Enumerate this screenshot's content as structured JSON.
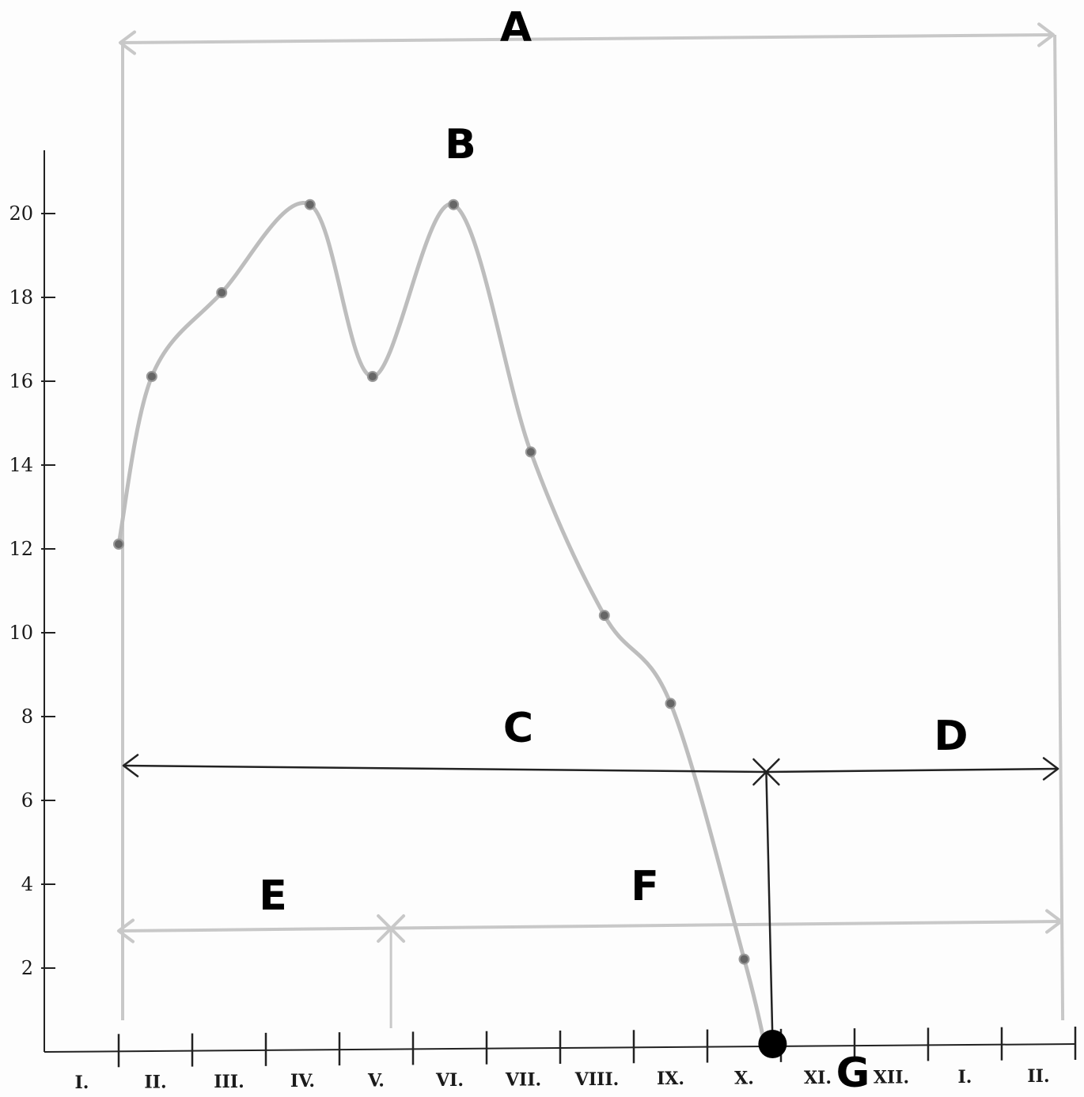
{
  "chart_data": {
    "type": "line",
    "title": "",
    "xlabel": "",
    "ylabel": "",
    "ylim": [
      0,
      21
    ],
    "y_ticks": [
      "2",
      "4",
      "6",
      "8",
      "10",
      "12",
      "14",
      "16",
      "18",
      "20"
    ],
    "month_labels": [
      "I.",
      "II.",
      "III.",
      "IV.",
      "V.",
      "VI.",
      "VII.",
      "VIII.",
      "IX.",
      "X.",
      "XI.",
      "XII.",
      "I.",
      "II."
    ],
    "series": [
      {
        "points": [
          {
            "x": 1.0,
            "y": 12
          },
          {
            "x": 1.45,
            "y": 16
          },
          {
            "x": 2.4,
            "y": 18
          },
          {
            "x": 3.6,
            "y": 20.1
          },
          {
            "x": 4.45,
            "y": 16
          },
          {
            "x": 5.55,
            "y": 20.1
          },
          {
            "x": 6.6,
            "y": 14.2
          },
          {
            "x": 7.6,
            "y": 10.3
          },
          {
            "x": 8.5,
            "y": 8.2
          },
          {
            "x": 9.5,
            "y": 2.1
          }
        ],
        "end": {
          "x": 9.8,
          "y": 0
        }
      }
    ],
    "annotations": {
      "A": "A",
      "B": "B",
      "C": "C",
      "D": "D",
      "E": "E",
      "F": "F",
      "G": "G"
    },
    "spans": {
      "A": {
        "from": 1,
        "to": 13.7
      },
      "C": {
        "from": 1,
        "to": 9.8
      },
      "D": {
        "from": 9.8,
        "to": 13.7
      },
      "E": {
        "from": 1,
        "to": 4.7
      },
      "F": {
        "from": 4.7,
        "to": 13.7
      }
    },
    "colors": {
      "curve": "#bdbdbd",
      "marker": "#666666",
      "axis": "#222222",
      "pencil": "#c8c8c8",
      "ink": "#222222"
    }
  }
}
